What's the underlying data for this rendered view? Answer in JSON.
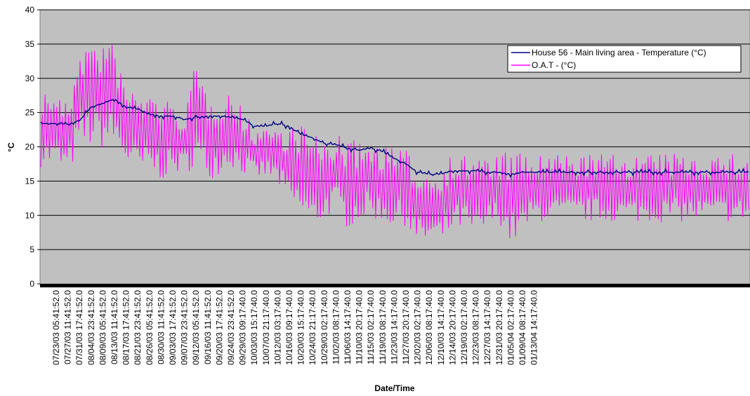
{
  "chart_data": {
    "type": "line",
    "title": "",
    "xlabel": "Date/Time",
    "ylabel": "°C",
    "ylim": [
      0,
      40
    ],
    "y_ticks": [
      0,
      5,
      10,
      15,
      20,
      25,
      30,
      35,
      40
    ],
    "grid": "horizontal",
    "legend_position": "top-right",
    "background_color": "#c0c0c0",
    "categories": [
      "07/23/03 05:41:52.0",
      "07/27/03 11:41:52.0",
      "07/31/03 17:41:52.0",
      "08/04/03 23:41:52.0",
      "08/09/03 05:41:52.0",
      "08/13/03 11:41:52.0",
      "08/17/03 17:41:52.0",
      "08/21/03 23:41:52.0",
      "08/26/03 05:41:52.0",
      "08/30/03 11:41:52.0",
      "09/03/03 17:41:52.0",
      "09/07/03 23:41:52.0",
      "09/12/03 05:41:52.0",
      "09/16/03 11:41:52.0",
      "09/20/03 17:41:52.0",
      "09/24/03 23:41:52.0",
      "09/29/03 09:17:40.0",
      "10/03/03 15:17:40.0",
      "10/07/03 21:17:40.0",
      "10/12/03 03:17:40.0",
      "10/16/03 09:17:40.0",
      "10/20/03 15:17:40.0",
      "10/24/03 21:17:40.0",
      "10/29/03 02:17:40.0",
      "11/02/03 08:17:40.0",
      "11/06/03 14:17:40.0",
      "11/10/03 20:17:40.0",
      "11/15/03 02:17:40.0",
      "11/19/03 08:17:40.0",
      "11/23/03 14:17:40.0",
      "11/27/03 20:17:40.0",
      "12/02/03 02:17:40.0",
      "12/06/03 08:17:40.0",
      "12/10/03 14:17:40.0",
      "12/14/03 20:17:40.0",
      "12/19/03 02:17:40.0",
      "12/23/03 08:17:40.0",
      "12/27/03 14:17:40.0",
      "12/31/03 20:17:40.0",
      "01/05/04 02:17:40.0",
      "01/09/04 08:17:40.0",
      "01/13/04 14:17:40.0"
    ],
    "series": [
      {
        "name": "House 56 - Main living area - Temperature (°C)",
        "color": "#000080",
        "values": [
          23.4,
          23.3,
          23.8,
          25.8,
          26.3,
          27.0,
          25.8,
          25.5,
          24.8,
          24.5,
          24.5,
          24.0,
          24.3,
          24.5,
          24.5,
          24.3,
          24.0,
          23.0,
          23.0,
          23.4,
          23.0,
          21.8,
          21.3,
          20.5,
          20.3,
          19.8,
          19.5,
          19.8,
          19.3,
          18.3,
          17.5,
          16.3,
          16.0,
          16.0,
          16.5,
          16.5,
          16.5,
          16.3,
          16.3,
          16.0,
          16.3,
          16.3
        ]
      },
      {
        "name": "O.A.T - (°C)",
        "color": "#ff00ff",
        "highs": [
          28.5,
          26.0,
          36.0,
          35.5,
          36.0,
          35.0,
          28.5,
          29.0,
          28.0,
          28.0,
          26.0,
          25.5,
          32.5,
          28.0,
          28.0,
          28.5,
          25.5,
          23.0,
          23.5,
          23.0,
          23.0,
          24.0,
          22.0,
          21.0,
          22.0,
          21.0,
          21.0,
          21.0,
          20.5,
          20.0,
          19.5,
          18.0,
          16.5,
          18.0,
          19.0,
          19.0,
          19.5,
          18.5,
          19.0,
          19.5,
          19.0,
          19.0
        ],
        "lows": [
          17.0,
          16.0,
          19.0,
          20.0,
          19.5,
          20.0,
          17.5,
          15.5,
          16.0,
          15.0,
          16.0,
          16.0,
          17.0,
          15.0,
          16.0,
          17.0,
          16.0,
          15.0,
          15.5,
          14.5,
          11.0,
          9.5,
          7.5,
          9.5,
          10.5,
          8.0,
          9.0,
          9.5,
          9.0,
          8.0,
          8.5,
          5.0,
          6.0,
          5.0,
          7.5,
          8.0,
          5.5,
          8.0,
          9.0,
          5.5,
          7.0,
          9.0
        ]
      }
    ]
  }
}
